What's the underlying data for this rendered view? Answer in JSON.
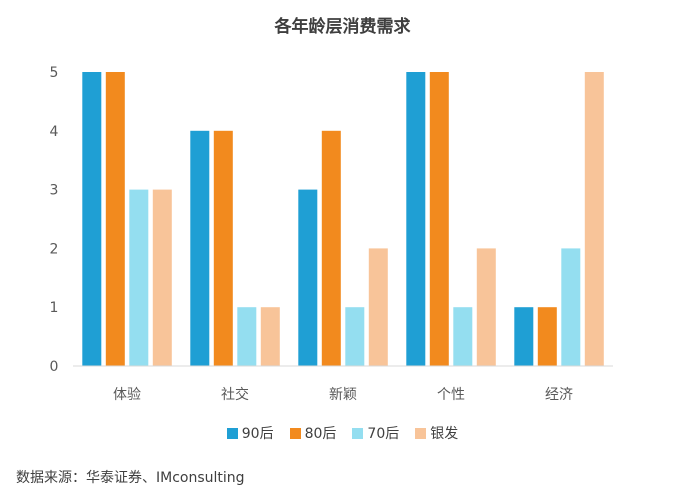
{
  "chart_data": {
    "type": "bar",
    "title": "各年龄层消费需求",
    "categories": [
      "体验",
      "社交",
      "新颖",
      "个性",
      "经济"
    ],
    "series": [
      {
        "name": "90后",
        "color": "#1f9fd4",
        "values": [
          5,
          4,
          3,
          5,
          1
        ]
      },
      {
        "name": "80后",
        "color": "#f28a1e",
        "values": [
          5,
          4,
          4,
          5,
          1
        ]
      },
      {
        "name": "70后",
        "color": "#94def0",
        "values": [
          3,
          1,
          1,
          1,
          2
        ]
      },
      {
        "name": "银发",
        "color": "#f8c499",
        "values": [
          3,
          1,
          2,
          2,
          5
        ]
      }
    ],
    "ylim": [
      0,
      5
    ],
    "yticks": [
      "0",
      "1",
      "2",
      "3",
      "4",
      "5"
    ],
    "grid": false,
    "legend_position": "bottom"
  },
  "source": "数据来源：华泰证券、IMconsulting"
}
